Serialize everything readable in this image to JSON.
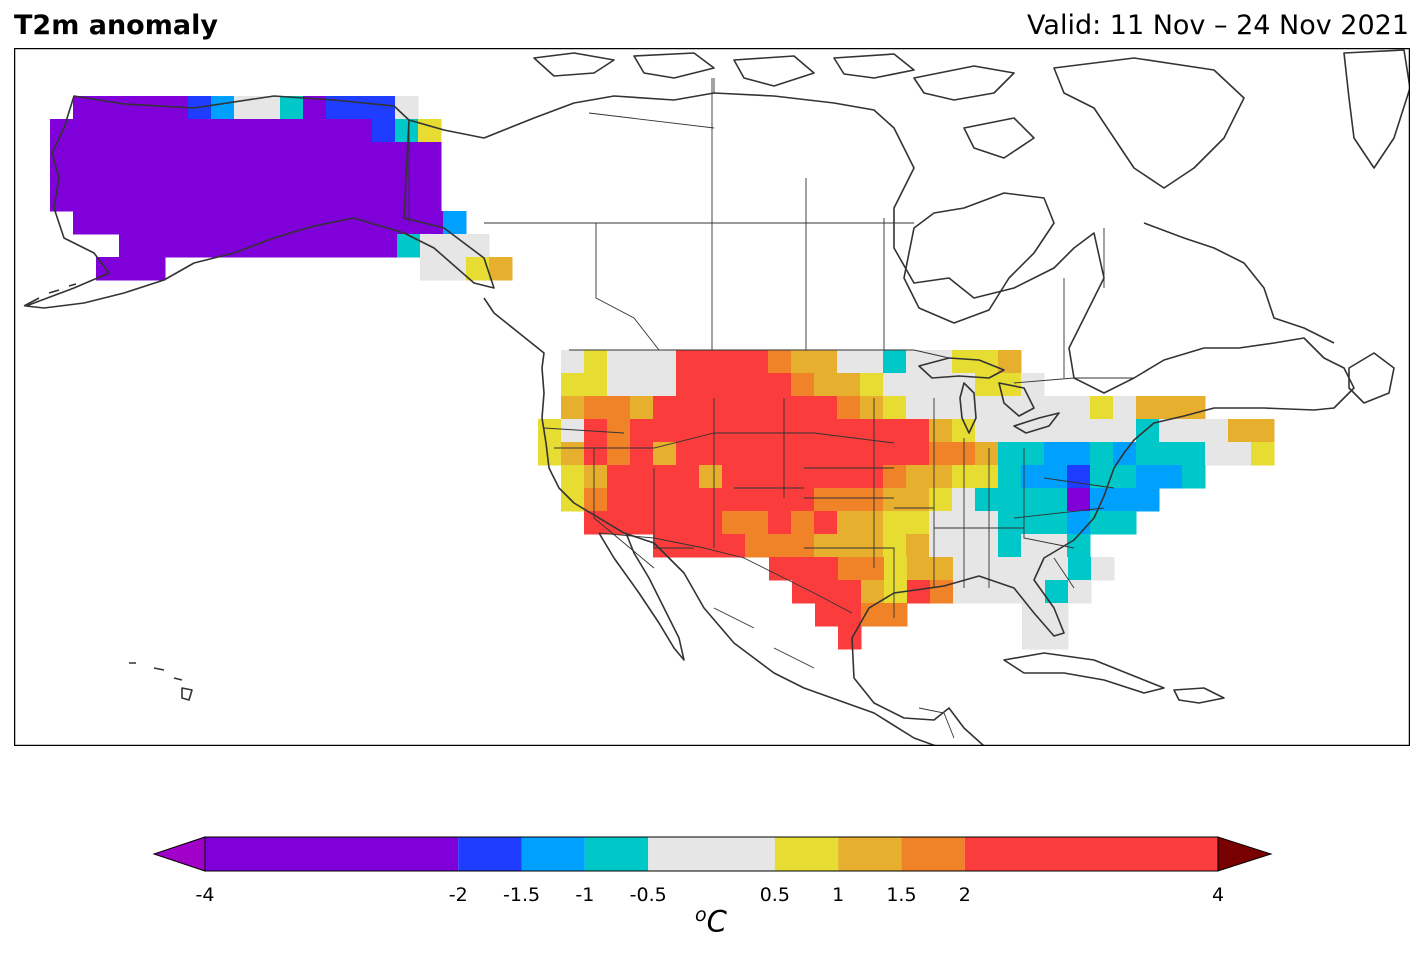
{
  "title": "T2m anomaly",
  "valid": "Valid: 11 Nov – 24 Nov 2021",
  "units": {
    "base": "o",
    "unit": "C"
  },
  "colorbar": {
    "boundaries": [
      -4,
      -2,
      -1.5,
      -1,
      -0.5,
      0.5,
      1,
      1.5,
      2,
      4
    ],
    "tick_labels": [
      "-4",
      "-2",
      "-1.5",
      "-1",
      "-0.5",
      "0.5",
      "1",
      "1.5",
      "2",
      "4"
    ],
    "colors": [
      "#7f00d8",
      "#1f3dff",
      "#00a0ff",
      "#00c8c8",
      "#e6e6e6",
      "#e6dc32",
      "#e6af2d",
      "#f08228",
      "#fa3c3c"
    ],
    "under_color": "#a000c8",
    "over_color": "#780000"
  },
  "map": {
    "region": "North America",
    "variable": "2m temperature anomaly (°C)",
    "projection": "lon/lat",
    "frame_color": "#000000",
    "coast_color": "#333333"
  },
  "chart_data": {
    "type": "heatmap",
    "title": "T2m anomaly",
    "units": "°C",
    "bins": [
      {
        "range": [
          -4,
          -2
        ],
        "label": "-4 to -2",
        "color": "#7f00d8"
      },
      {
        "range": [
          -2,
          -1.5
        ],
        "label": "-2 to -1.5",
        "color": "#1f3dff"
      },
      {
        "range": [
          -1.5,
          -1
        ],
        "label": "-1.5 to -1",
        "color": "#00a0ff"
      },
      {
        "range": [
          -1,
          -0.5
        ],
        "label": "-1 to -0.5",
        "color": "#00c8c8"
      },
      {
        "range": [
          -0.5,
          0.5
        ],
        "label": "-0.5 to 0.5",
        "color": "#e6e6e6"
      },
      {
        "range": [
          0.5,
          1
        ],
        "label": "0.5 to 1",
        "color": "#e6dc32"
      },
      {
        "range": [
          1,
          1.5
        ],
        "label": "1 to 1.5",
        "color": "#e6af2d"
      },
      {
        "range": [
          1.5,
          2
        ],
        "label": "1.5 to 2",
        "color": "#f08228"
      },
      {
        "range": [
          2,
          4
        ],
        "label": "2 to 4",
        "color": "#fa3c3c"
      }
    ],
    "regions": [
      {
        "region": "Alaska interior",
        "anomaly_bin": "-4 to -2"
      },
      {
        "region": "Alaska north slope",
        "anomaly_bin": "-2 to -0.5 (mixed)"
      },
      {
        "region": "Alaska panhandle",
        "anomaly_bin": "-4 to -2"
      },
      {
        "region": "Pacific Northwest coast",
        "anomaly_bin": "-0.5 to 0.5"
      },
      {
        "region": "Northern Rockies / Plains",
        "anomaly_bin": "2 to 4"
      },
      {
        "region": "Great Basin / Southwest",
        "anomaly_bin": "2 to 4"
      },
      {
        "region": "California",
        "anomaly_bin": "0.5 to 2"
      },
      {
        "region": "Texas",
        "anomaly_bin": "1 to 4"
      },
      {
        "region": "Central Plains",
        "anomaly_bin": "1 to 2"
      },
      {
        "region": "Great Lakes / Midwest",
        "anomaly_bin": "-0.5 to 0.5"
      },
      {
        "region": "Ohio / Tennessee Valley",
        "anomaly_bin": "-1.5 to -0.5"
      },
      {
        "region": "Appalachians / Mid-Atlantic",
        "anomaly_bin": "-4 to -1"
      },
      {
        "region": "Southeast / Florida",
        "anomaly_bin": "-0.5 to 0.5"
      },
      {
        "region": "New England",
        "anomaly_bin": "1 to 2"
      }
    ]
  }
}
